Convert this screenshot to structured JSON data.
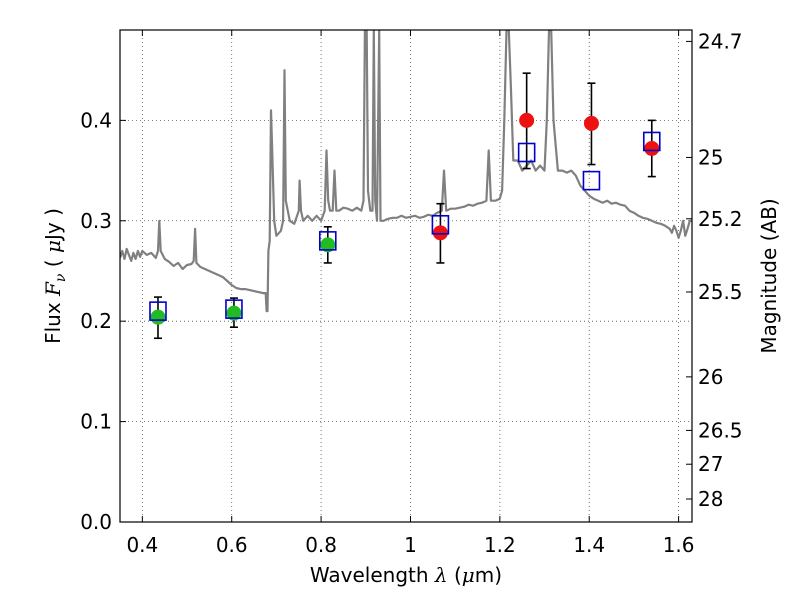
{
  "chart_data": {
    "type": "scatter",
    "xlabel": {
      "prefix": "Wavelength",
      "symbol": "λ",
      "unit_open": " (",
      "unit_mu": "μ",
      "unit_rest": "m)"
    },
    "ylabel": {
      "prefix": "Flux",
      "symbol": "F",
      "sub": "ν",
      "unit_open": "( ",
      "unit_mu": "μ",
      "unit_rest": "Jy )"
    },
    "y2label": "Magnitude (AB)",
    "xlim": [
      0.35,
      1.63
    ],
    "ylim": [
      0.0,
      0.49
    ],
    "grid": true,
    "x_ticks": [
      {
        "v": 0.4,
        "label": "0.4"
      },
      {
        "v": 0.6,
        "label": "0.6"
      },
      {
        "v": 0.8,
        "label": "0.8"
      },
      {
        "v": 1.0,
        "label": "1"
      },
      {
        "v": 1.2,
        "label": "1.2"
      },
      {
        "v": 1.4,
        "label": "1.4"
      },
      {
        "v": 1.6,
        "label": "1.6"
      }
    ],
    "y_ticks": [
      {
        "v": 0.0,
        "label": "0.0"
      },
      {
        "v": 0.1,
        "label": "0.1"
      },
      {
        "v": 0.2,
        "label": "0.2"
      },
      {
        "v": 0.3,
        "label": "0.3"
      },
      {
        "v": 0.4,
        "label": "0.4"
      }
    ],
    "y2_ticks": [
      {
        "mag": 24.7,
        "label": "24.7"
      },
      {
        "mag": 25,
        "label": "25"
      },
      {
        "mag": 25.2,
        "label": "25.2"
      },
      {
        "mag": 25.5,
        "label": "25.5"
      },
      {
        "mag": 26,
        "label": "26"
      },
      {
        "mag": 26.5,
        "label": "26.5"
      },
      {
        "mag": 27,
        "label": "27"
      },
      {
        "mag": 28,
        "label": "28"
      }
    ],
    "colors": {
      "spectrum": "#808080",
      "model_box": "#0000cc",
      "obs_green": "#22bb22",
      "obs_red": "#ee1111",
      "errorbar": "#000000",
      "grid": "#555555"
    },
    "spectrum": [
      [
        0.35,
        0.263
      ],
      [
        0.355,
        0.27
      ],
      [
        0.36,
        0.262
      ],
      [
        0.365,
        0.272
      ],
      [
        0.37,
        0.266
      ],
      [
        0.375,
        0.26
      ],
      [
        0.38,
        0.268
      ],
      [
        0.385,
        0.262
      ],
      [
        0.39,
        0.27
      ],
      [
        0.395,
        0.264
      ],
      [
        0.4,
        0.27
      ],
      [
        0.41,
        0.266
      ],
      [
        0.42,
        0.268
      ],
      [
        0.43,
        0.263
      ],
      [
        0.435,
        0.27
      ],
      [
        0.438,
        0.3
      ],
      [
        0.441,
        0.27
      ],
      [
        0.45,
        0.262
      ],
      [
        0.46,
        0.259
      ],
      [
        0.47,
        0.255
      ],
      [
        0.48,
        0.258
      ],
      [
        0.49,
        0.252
      ],
      [
        0.5,
        0.256
      ],
      [
        0.51,
        0.257
      ],
      [
        0.515,
        0.26
      ],
      [
        0.518,
        0.292
      ],
      [
        0.521,
        0.258
      ],
      [
        0.53,
        0.254
      ],
      [
        0.54,
        0.252
      ],
      [
        0.55,
        0.25
      ],
      [
        0.56,
        0.248
      ],
      [
        0.57,
        0.246
      ],
      [
        0.58,
        0.244
      ],
      [
        0.59,
        0.24
      ],
      [
        0.6,
        0.236
      ],
      [
        0.61,
        0.233
      ],
      [
        0.62,
        0.232
      ],
      [
        0.63,
        0.232
      ],
      [
        0.64,
        0.231
      ],
      [
        0.65,
        0.23
      ],
      [
        0.66,
        0.229
      ],
      [
        0.67,
        0.228
      ],
      [
        0.676,
        0.228
      ],
      [
        0.678,
        0.21
      ],
      [
        0.68,
        0.21
      ],
      [
        0.682,
        0.27
      ],
      [
        0.685,
        0.28
      ],
      [
        0.688,
        0.41
      ],
      [
        0.69,
        0.38
      ],
      [
        0.695,
        0.3
      ],
      [
        0.7,
        0.285
      ],
      [
        0.71,
        0.29
      ],
      [
        0.715,
        0.3
      ],
      [
        0.718,
        0.45
      ],
      [
        0.721,
        0.32
      ],
      [
        0.73,
        0.3
      ],
      [
        0.74,
        0.297
      ],
      [
        0.75,
        0.31
      ],
      [
        0.752,
        0.34
      ],
      [
        0.755,
        0.31
      ],
      [
        0.76,
        0.3
      ],
      [
        0.77,
        0.305
      ],
      [
        0.78,
        0.3
      ],
      [
        0.79,
        0.305
      ],
      [
        0.8,
        0.3
      ],
      [
        0.808,
        0.31
      ],
      [
        0.812,
        0.37
      ],
      [
        0.816,
        0.32
      ],
      [
        0.82,
        0.31
      ],
      [
        0.826,
        0.31
      ],
      [
        0.83,
        0.35
      ],
      [
        0.834,
        0.31
      ],
      [
        0.84,
        0.31
      ],
      [
        0.85,
        0.313
      ],
      [
        0.86,
        0.312
      ],
      [
        0.87,
        0.31
      ],
      [
        0.88,
        0.313
      ],
      [
        0.89,
        0.31
      ],
      [
        0.895,
        0.32
      ],
      [
        0.898,
        0.49
      ],
      [
        0.902,
        0.49
      ],
      [
        0.905,
        0.33
      ],
      [
        0.91,
        0.31
      ],
      [
        0.915,
        0.31
      ],
      [
        0.918,
        0.49
      ],
      [
        0.921,
        0.32
      ],
      [
        0.925,
        0.3
      ],
      [
        0.93,
        0.49
      ],
      [
        0.933,
        0.3
      ],
      [
        0.94,
        0.3
      ],
      [
        0.95,
        0.302
      ],
      [
        0.96,
        0.303
      ],
      [
        0.97,
        0.303
      ],
      [
        0.98,
        0.305
      ],
      [
        0.99,
        0.303
      ],
      [
        1.0,
        0.304
      ],
      [
        1.01,
        0.305
      ],
      [
        1.02,
        0.303
      ],
      [
        1.03,
        0.304
      ],
      [
        1.04,
        0.306
      ],
      [
        1.05,
        0.305
      ],
      [
        1.06,
        0.308
      ],
      [
        1.07,
        0.31
      ],
      [
        1.075,
        0.35
      ],
      [
        1.08,
        0.31
      ],
      [
        1.09,
        0.312
      ],
      [
        1.1,
        0.312
      ],
      [
        1.11,
        0.313
      ],
      [
        1.12,
        0.314
      ],
      [
        1.13,
        0.316
      ],
      [
        1.14,
        0.315
      ],
      [
        1.15,
        0.317
      ],
      [
        1.16,
        0.318
      ],
      [
        1.17,
        0.32
      ],
      [
        1.175,
        0.37
      ],
      [
        1.18,
        0.32
      ],
      [
        1.19,
        0.32
      ],
      [
        1.2,
        0.322
      ],
      [
        1.205,
        0.33
      ],
      [
        1.21,
        0.4
      ],
      [
        1.215,
        0.49
      ],
      [
        1.22,
        0.49
      ],
      [
        1.225,
        0.43
      ],
      [
        1.23,
        0.36
      ],
      [
        1.24,
        0.36
      ],
      [
        1.25,
        0.35
      ],
      [
        1.26,
        0.355
      ],
      [
        1.27,
        0.36
      ],
      [
        1.28,
        0.35
      ],
      [
        1.29,
        0.355
      ],
      [
        1.3,
        0.35
      ],
      [
        1.305,
        0.4
      ],
      [
        1.31,
        0.49
      ],
      [
        1.315,
        0.49
      ],
      [
        1.32,
        0.4
      ],
      [
        1.33,
        0.35
      ],
      [
        1.34,
        0.35
      ],
      [
        1.35,
        0.348
      ],
      [
        1.36,
        0.35
      ],
      [
        1.37,
        0.345
      ],
      [
        1.38,
        0.335
      ],
      [
        1.39,
        0.33
      ],
      [
        1.4,
        0.325
      ],
      [
        1.41,
        0.322
      ],
      [
        1.42,
        0.32
      ],
      [
        1.43,
        0.318
      ],
      [
        1.44,
        0.32
      ],
      [
        1.45,
        0.317
      ],
      [
        1.46,
        0.318
      ],
      [
        1.47,
        0.316
      ],
      [
        1.48,
        0.315
      ],
      [
        1.49,
        0.31
      ],
      [
        1.5,
        0.308
      ],
      [
        1.51,
        0.305
      ],
      [
        1.52,
        0.303
      ],
      [
        1.53,
        0.302
      ],
      [
        1.54,
        0.3
      ],
      [
        1.55,
        0.298
      ],
      [
        1.56,
        0.297
      ],
      [
        1.57,
        0.295
      ],
      [
        1.58,
        0.292
      ],
      [
        1.585,
        0.288
      ],
      [
        1.59,
        0.295
      ],
      [
        1.595,
        0.29
      ],
      [
        1.6,
        0.283
      ],
      [
        1.605,
        0.29
      ],
      [
        1.61,
        0.3
      ],
      [
        1.615,
        0.285
      ],
      [
        1.62,
        0.292
      ],
      [
        1.625,
        0.3
      ],
      [
        1.63,
        0.3
      ]
    ],
    "model_points": [
      {
        "x": 0.435,
        "y": 0.21
      },
      {
        "x": 0.605,
        "y": 0.212
      },
      {
        "x": 0.815,
        "y": 0.28
      },
      {
        "x": 1.067,
        "y": 0.296
      },
      {
        "x": 1.26,
        "y": 0.368
      },
      {
        "x": 1.405,
        "y": 0.34
      },
      {
        "x": 1.54,
        "y": 0.379
      }
    ],
    "observed_points": [
      {
        "x": 0.435,
        "y": 0.204,
        "lo": 0.183,
        "hi": 0.224,
        "color": "green"
      },
      {
        "x": 0.605,
        "y": 0.208,
        "lo": 0.194,
        "hi": 0.223,
        "color": "green"
      },
      {
        "x": 0.815,
        "y": 0.276,
        "lo": 0.258,
        "hi": 0.294,
        "color": "green"
      },
      {
        "x": 1.067,
        "y": 0.288,
        "lo": 0.258,
        "hi": 0.317,
        "color": "red"
      },
      {
        "x": 1.26,
        "y": 0.4,
        "lo": 0.352,
        "hi": 0.447,
        "color": "red"
      },
      {
        "x": 1.405,
        "y": 0.397,
        "lo": 0.356,
        "hi": 0.437,
        "color": "red"
      },
      {
        "x": 1.54,
        "y": 0.372,
        "lo": 0.344,
        "hi": 0.4,
        "color": "red"
      }
    ]
  }
}
